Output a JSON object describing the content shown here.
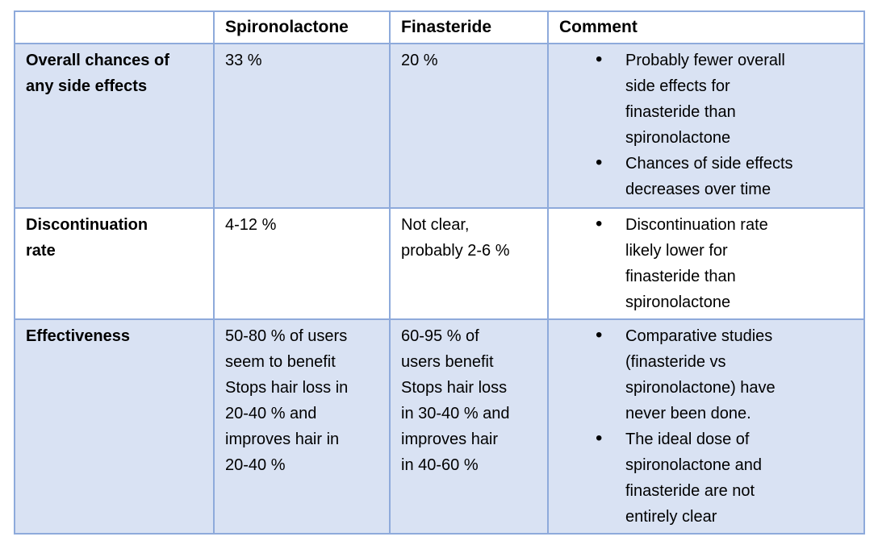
{
  "title": "Spironolactone vs Finasteride comparison table",
  "colors": {
    "table_border": "#8EAADB",
    "shaded_row_bg": "#D9E2F3",
    "unshaded_row_bg": "#FFFFFF",
    "text": "#000000"
  },
  "table": {
    "headers": [
      "",
      "Spironolactone",
      "Finasteride",
      "Comment"
    ],
    "rows": [
      {
        "label": [
          "Overall chances of",
          "any side effects"
        ],
        "spironolactone": [
          "33 %"
        ],
        "finasteride": [
          "20 %"
        ],
        "comments": [
          [
            "Probably fewer overall",
            "side effects for",
            "finasteride than",
            "spironolactone"
          ],
          [
            "Chances of side effects",
            "decreases over time"
          ]
        ]
      },
      {
        "label": [
          "Discontinuation",
          "rate"
        ],
        "spironolactone": [
          "4-12 %"
        ],
        "finasteride": [
          "Not clear,",
          "probably 2-6 %"
        ],
        "comments": [
          [
            "Discontinuation rate",
            "likely lower for",
            "finasteride than",
            "spironolactone"
          ]
        ]
      },
      {
        "label": [
          "Effectiveness"
        ],
        "spironolactone": [
          "50-80 % of users",
          "seem to benefit",
          "Stops hair loss in",
          "20-40 % and",
          "improves hair in",
          "20-40 %"
        ],
        "finasteride": [
          "60-95 % of",
          "users benefit",
          "Stops hair loss",
          "in 30-40 % and",
          "improves hair",
          "in 40-60 %"
        ],
        "comments": [
          [
            "Comparative studies",
            "(finasteride vs",
            "spironolactone) have",
            "never been done."
          ],
          [
            "The ideal dose of",
            "spironolactone and",
            "finasteride are not",
            "entirely clear"
          ]
        ]
      }
    ]
  }
}
